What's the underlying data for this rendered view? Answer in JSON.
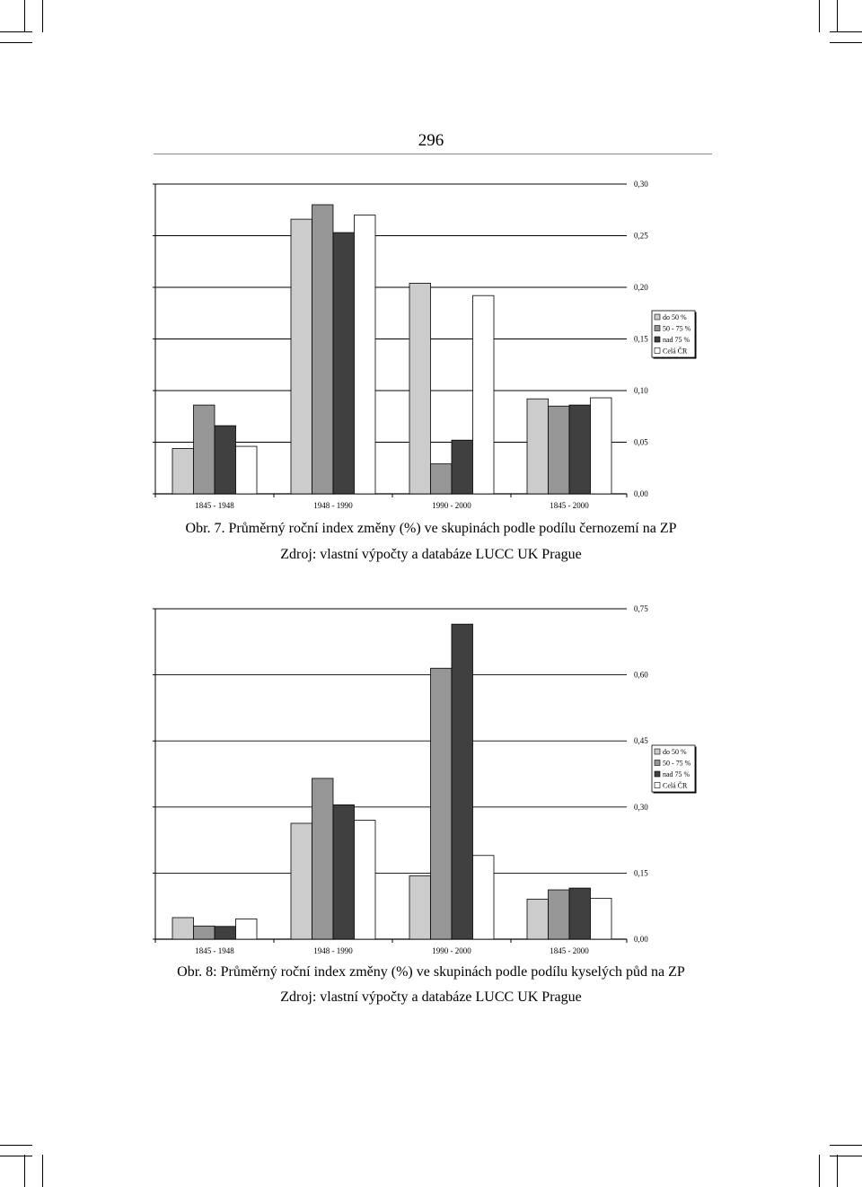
{
  "page": {
    "number": "296"
  },
  "figures": [
    {
      "caption": "Obr. 7. Průměrný roční index změny (%) ve skupinách podle podílu černozemí na ZP",
      "source": "Zdroj: vlastní výpočty a databáze LUCC UK Prague"
    },
    {
      "caption": "Obr. 8: Průměrný roční index změny (%) ve skupinách podle podílu kyselých půd na ZP",
      "source": "Zdroj: vlastní výpočty a databáze LUCC UK Prague"
    }
  ],
  "chart_data": [
    {
      "type": "bar",
      "categories": [
        "1845 - 1948",
        "1948 - 1990",
        "1990 - 2000",
        "1845 - 2000"
      ],
      "series": [
        {
          "name": "do 50 %",
          "color": "#cccccc",
          "values": [
            0.044,
            0.266,
            0.204,
            0.092
          ]
        },
        {
          "name": "50 - 75 %",
          "color": "#969696",
          "values": [
            0.086,
            0.28,
            0.029,
            0.085
          ]
        },
        {
          "name": "nad 75 %",
          "color": "#404040",
          "values": [
            0.066,
            0.253,
            0.052,
            0.086
          ]
        },
        {
          "name": "Celá ČR",
          "color": "#ffffff",
          "values": [
            0.046,
            0.27,
            0.192,
            0.093
          ]
        }
      ],
      "yticks": [
        "0,00",
        "0,05",
        "0,10",
        "0,15",
        "0,20",
        "0,25",
        "0,30"
      ],
      "ylim": [
        0,
        0.3
      ],
      "grid": true,
      "legend": "right"
    },
    {
      "type": "bar",
      "categories": [
        "1845 - 1948",
        "1948 - 1990",
        "1990 - 2000",
        "1845 - 2000"
      ],
      "series": [
        {
          "name": "do 50 %",
          "color": "#cccccc",
          "values": [
            0.049,
            0.263,
            0.144,
            0.091
          ]
        },
        {
          "name": "50 - 75 %",
          "color": "#969696",
          "values": [
            0.03,
            0.365,
            0.615,
            0.112
          ]
        },
        {
          "name": "nad 75 %",
          "color": "#404040",
          "values": [
            0.029,
            0.305,
            0.715,
            0.116
          ]
        },
        {
          "name": "Celá ČR",
          "color": "#ffffff",
          "values": [
            0.046,
            0.27,
            0.19,
            0.093
          ]
        }
      ],
      "yticks": [
        "0,00",
        "0,15",
        "0,30",
        "0,45",
        "0,60",
        "0,75"
      ],
      "ylim": [
        0,
        0.75
      ],
      "grid": true,
      "legend": "right"
    }
  ]
}
